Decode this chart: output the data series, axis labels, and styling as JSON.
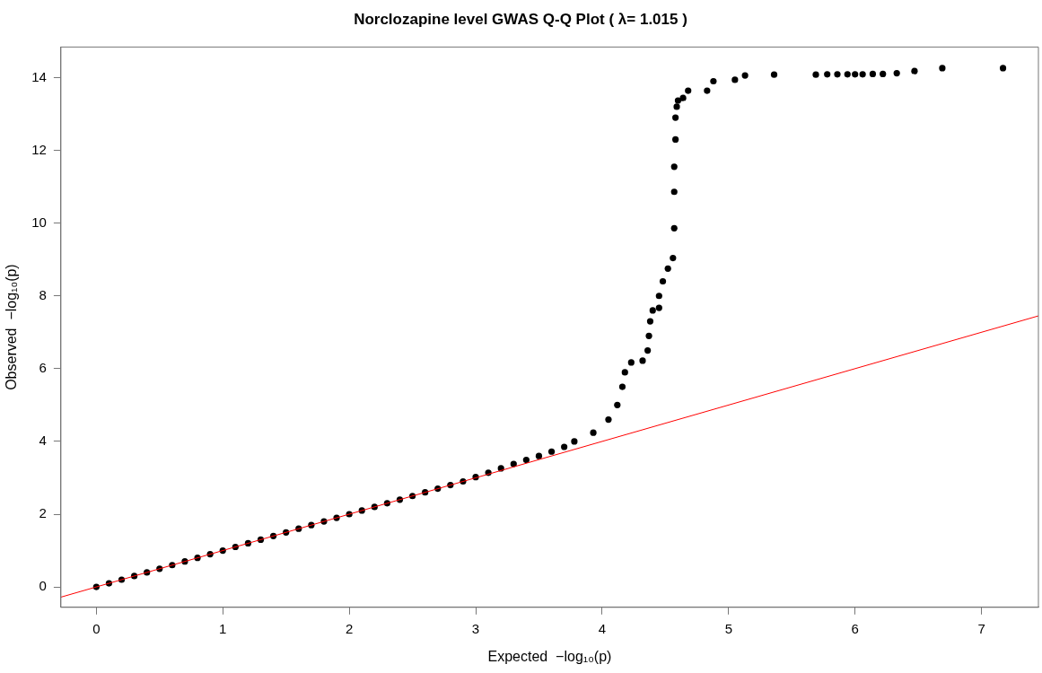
{
  "chart_data": {
    "type": "scatter",
    "title": "Norclozapine level GWAS Q-Q Plot ( λ= 1.015 )",
    "xlabel": "Expected  −log₁₀(p)",
    "ylabel": "Observed  −log₁₀(p)",
    "xlim": [
      -0.28,
      7.45
    ],
    "ylim": [
      -0.56,
      14.84
    ],
    "xticks": [
      0,
      1,
      2,
      3,
      4,
      5,
      6,
      7
    ],
    "yticks": [
      0,
      2,
      4,
      6,
      8,
      10,
      12,
      14
    ],
    "grid": false,
    "legend": false,
    "marker": "circle",
    "series": [
      {
        "color": "#000000",
        "x": [
          0,
          0.1,
          0.2,
          0.3,
          0.4,
          0.5,
          0.6,
          0.7,
          0.8,
          0.9,
          1,
          1.1,
          1.2,
          1.3,
          1.4,
          1.5,
          1.6,
          1.7,
          1.8,
          1.9,
          2,
          2.1,
          2.2,
          2.3,
          2.4,
          2.5,
          2.6,
          2.7,
          2.8,
          2.9,
          3,
          3.1,
          3.2,
          3.3,
          3.4,
          3.5,
          3.6,
          3.7,
          3.78,
          3.93,
          4.05,
          4.12,
          4.16,
          4.18,
          4.23,
          4.32,
          4.36,
          4.37,
          4.38,
          4.4,
          4.45,
          4.45,
          4.48,
          4.52,
          4.56,
          4.57,
          4.57,
          4.57,
          4.58,
          4.58,
          4.59,
          4.6,
          4.64,
          4.68,
          4.83,
          4.88,
          5.05,
          5.13,
          5.36,
          5.69,
          5.78,
          5.86,
          5.94,
          6.0,
          6.06,
          6.14,
          6.22,
          6.33,
          6.47,
          6.69,
          7.17
        ],
        "values": [
          0,
          0.1,
          0.2,
          0.3,
          0.4,
          0.5,
          0.6,
          0.7,
          0.8,
          0.9,
          1,
          1.1,
          1.2,
          1.3,
          1.4,
          1.5,
          1.6,
          1.7,
          1.8,
          1.9,
          2,
          2.1,
          2.2,
          2.3,
          2.4,
          2.5,
          2.6,
          2.7,
          2.8,
          2.9,
          3.02,
          3.14,
          3.26,
          3.38,
          3.49,
          3.6,
          3.72,
          3.85,
          4.0,
          4.24,
          4.6,
          5.0,
          5.5,
          5.9,
          6.17,
          6.22,
          6.5,
          6.9,
          7.3,
          7.6,
          7.67,
          8.0,
          8.4,
          8.75,
          9.04,
          9.86,
          10.86,
          11.55,
          12.3,
          12.9,
          13.2,
          13.37,
          13.44,
          13.64,
          13.64,
          13.9,
          13.94,
          14.06,
          14.08,
          14.08,
          14.09,
          14.09,
          14.09,
          14.09,
          14.09,
          14.1,
          14.1,
          14.12,
          14.18,
          14.26,
          14.26
        ]
      },
      {
        "type": "line",
        "color": "#ff0000",
        "marker": "none",
        "x": [
          -0.28,
          7.45
        ],
        "values": [
          -0.28,
          7.45
        ]
      }
    ]
  }
}
